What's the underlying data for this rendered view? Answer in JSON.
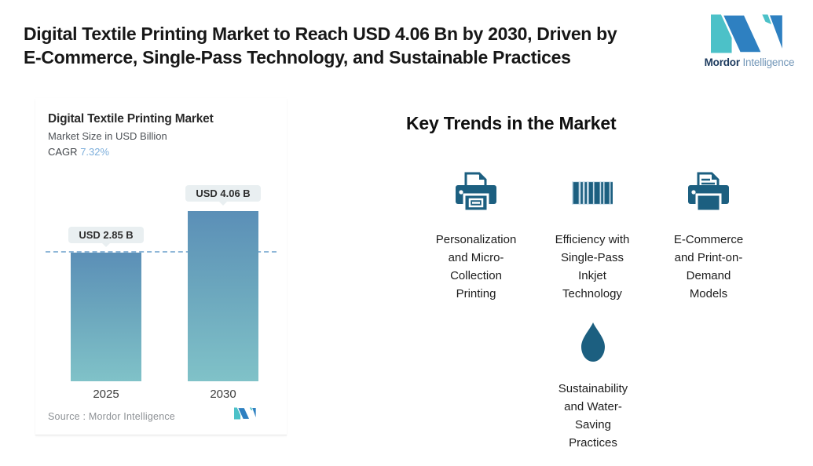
{
  "header": {
    "title_lines": [
      "Digital Textile Printing Market to Reach USD 4.06 Bn by 2030, Driven by",
      "E-Commerce, Single-Pass Technology, and Sustainable Practices"
    ],
    "logo": {
      "brand_bold": "Mordor",
      "brand_light": "Intelligence"
    }
  },
  "chart_data": {
    "type": "bar",
    "title": "Digital Textile Printing Market",
    "subtitle": "Market Size in USD Billion",
    "cagr_label": "CAGR",
    "cagr_value": "7.32%",
    "categories": [
      "2025",
      "2030"
    ],
    "values": [
      2.85,
      4.06
    ],
    "value_labels": [
      "USD 2.85 B",
      "USD 4.06 B"
    ],
    "ylim": [
      0,
      4.06
    ],
    "unit": "USD Billion",
    "reference_line_at": 2.85,
    "source_label": "Source :",
    "source_value": "Mordor Intelligence",
    "colors": {
      "bar_top": "#5b8fb7",
      "bar_bottom": "#80c2c8",
      "dashed_line": "#8fb7d8",
      "cagr_value": "#7caedb",
      "bubble_bg": "#e9eff1",
      "icon": "#1c5f80",
      "logo_teal": "#4cc1c8",
      "logo_blue": "#2e80c1"
    }
  },
  "trends": {
    "heading": "Key Trends in the Market",
    "items": [
      {
        "icon": "printer-icon",
        "label": "Personalization and Micro-Collection Printing",
        "lines": [
          "Personalization",
          "and Micro-",
          "Collection",
          "Printing"
        ]
      },
      {
        "icon": "barcode-icon",
        "label": "Efficiency with Single-Pass Inkjet Technology",
        "lines": [
          "Efficiency with",
          "Single-Pass",
          "Inkjet",
          "Technology"
        ]
      },
      {
        "icon": "printer-document-icon",
        "label": "E-Commerce and Print-on-Demand Models",
        "lines": [
          "E-Commerce",
          "and Print-on-",
          "Demand",
          "Models"
        ]
      },
      {
        "icon": "water-drop-icon",
        "label": "Sustainability and Water-Saving Practices",
        "lines": [
          "Sustainability",
          "and Water-",
          "Saving",
          "Practices"
        ]
      }
    ]
  }
}
